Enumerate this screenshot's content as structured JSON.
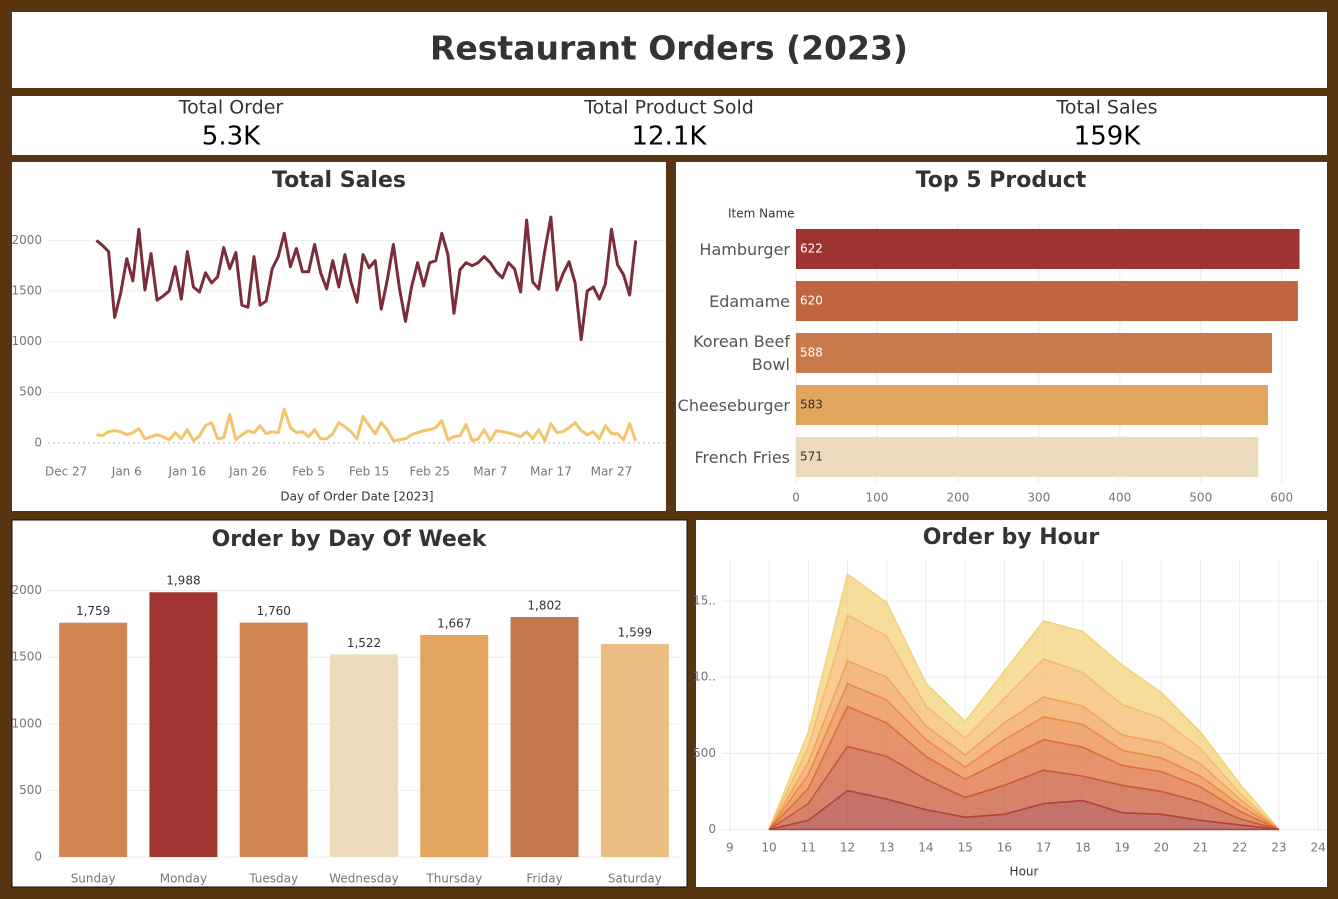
{
  "header": {
    "title": "Restaurant Orders (2023)"
  },
  "kpis": [
    {
      "label": "Total Order",
      "value": "5.3K"
    },
    {
      "label": "Total Product Sold",
      "value": "12.1K"
    },
    {
      "label": "Total Sales",
      "value": "159K"
    }
  ],
  "chart_data": [
    {
      "type": "line",
      "title": "Total Sales",
      "x_label": "Day of Order Date [2023]",
      "x": [
        1,
        2,
        3,
        4,
        5,
        6,
        7,
        8,
        9,
        10,
        11,
        12,
        13,
        14,
        15,
        16,
        17,
        18,
        19,
        20,
        21,
        22,
        23,
        24,
        25,
        26,
        27,
        28,
        29,
        30,
        31,
        32,
        33,
        34,
        35,
        36,
        37,
        38,
        39,
        40,
        41,
        42,
        43,
        44,
        45,
        46,
        47,
        48,
        49,
        50,
        51,
        52,
        53,
        54,
        55,
        56,
        57,
        58,
        59,
        60,
        61,
        62,
        63,
        64,
        65,
        66,
        67,
        68,
        69,
        70,
        71,
        72,
        73,
        74,
        75,
        76,
        77,
        78,
        79,
        80,
        81,
        82,
        83,
        84,
        85,
        86,
        87,
        88,
        89,
        90
      ],
      "series": [
        {
          "color": "#7b2d3b",
          "values": [
            2000,
            1950,
            1890,
            1240,
            1480,
            1820,
            1600,
            2110,
            1510,
            1870,
            1410,
            1450,
            1500,
            1740,
            1420,
            1890,
            1540,
            1490,
            1680,
            1580,
            1640,
            1930,
            1720,
            1880,
            1360,
            1340,
            1840,
            1360,
            1400,
            1720,
            1840,
            2070,
            1740,
            1920,
            1690,
            1690,
            1960,
            1680,
            1520,
            1800,
            1540,
            1860,
            1590,
            1390,
            1860,
            1730,
            1800,
            1320,
            1610,
            1960,
            1530,
            1200,
            1540,
            1780,
            1550,
            1780,
            1800,
            2070,
            1860,
            1280,
            1710,
            1780,
            1750,
            1780,
            1840,
            1780,
            1690,
            1630,
            1780,
            1720,
            1490,
            2200,
            1590,
            1520,
            1900,
            2230,
            1510,
            1670,
            1790,
            1580,
            1020,
            1500,
            1540,
            1420,
            1570,
            2110,
            1760,
            1660,
            1460,
            2000
          ]
        },
        {
          "color": "#f2c46b",
          "values": [
            80,
            70,
            110,
            120,
            110,
            80,
            100,
            140,
            40,
            60,
            80,
            60,
            30,
            100,
            40,
            130,
            20,
            70,
            170,
            200,
            40,
            50,
            280,
            30,
            80,
            120,
            100,
            170,
            90,
            110,
            100,
            330,
            150,
            100,
            110,
            60,
            130,
            40,
            40,
            90,
            200,
            160,
            110,
            40,
            260,
            170,
            90,
            200,
            130,
            20,
            30,
            40,
            80,
            100,
            120,
            130,
            150,
            220,
            30,
            60,
            70,
            180,
            20,
            40,
            130,
            20,
            120,
            110,
            100,
            80,
            60,
            110,
            40,
            130,
            20,
            190,
            100,
            110,
            150,
            200,
            120,
            80,
            110,
            40,
            170,
            90,
            90,
            30,
            190,
            20
          ]
        }
      ],
      "xlim": [
        -7,
        95
      ],
      "xticks": [
        {
          "value": -4,
          "label": "Dec 27"
        },
        {
          "value": 6,
          "label": "Jan 6"
        },
        {
          "value": 16,
          "label": "Jan 16"
        },
        {
          "value": 26,
          "label": "Jan 26"
        },
        {
          "value": 36,
          "label": "Feb 5"
        },
        {
          "value": 46,
          "label": "Feb 15"
        },
        {
          "value": 56,
          "label": "Feb 25"
        },
        {
          "value": 66,
          "label": "Mar 7"
        },
        {
          "value": 76,
          "label": "Mar 17"
        },
        {
          "value": 86,
          "label": "Mar 27"
        }
      ],
      "ylim": [
        -150,
        2350
      ],
      "yticks": [
        0,
        500,
        1000,
        1500,
        2000
      ],
      "grid": true
    },
    {
      "type": "hbar",
      "title": "Top 5 Product",
      "y_label": "Item Name",
      "categories": [
        "Hamburger",
        "Edamame",
        "Korean Beef Bowl",
        "Cheeseburger",
        "French Fries"
      ],
      "values": [
        622,
        620,
        588,
        583,
        571
      ],
      "colors": [
        "#9e3432",
        "#c0653f",
        "#c97a4b",
        "#e2a55f",
        "#ecdabd"
      ],
      "xlim": [
        0,
        630
      ],
      "xticks": [
        0,
        100,
        200,
        300,
        400,
        500,
        600
      ],
      "grid": true
    },
    {
      "type": "bar",
      "title": "Order by Day Of Week",
      "categories": [
        "Sunday",
        "Monday",
        "Tuesday",
        "Wednesday",
        "Thursday",
        "Friday",
        "Saturday"
      ],
      "values": [
        1759,
        1988,
        1760,
        1522,
        1667,
        1802,
        1599
      ],
      "value_labels": [
        "1,759",
        "1,988",
        "1,760",
        "1,522",
        "1,667",
        "1,802",
        "1,599"
      ],
      "colors": [
        "#d08651",
        "#a03533",
        "#d08651",
        "#ecdabd",
        "#e3a45f",
        "#c6764b",
        "#eabe83"
      ],
      "ylim": [
        -60,
        2230
      ],
      "yticks": [
        0,
        500,
        1000,
        1500,
        2000
      ],
      "grid": true
    },
    {
      "type": "area",
      "title": "Order by Hour",
      "x_label": "Hour",
      "x": [
        10,
        11,
        12,
        13,
        14,
        15,
        16,
        17,
        18,
        19,
        20,
        21,
        22,
        23
      ],
      "series": [
        {
          "color": "#b0443a",
          "values": [
            0,
            60,
            255,
            200,
            130,
            80,
            100,
            170,
            190,
            110,
            100,
            60,
            30,
            0
          ]
        },
        {
          "color": "#c9583a",
          "values": [
            0,
            110,
            290,
            280,
            200,
            130,
            190,
            220,
            160,
            180,
            150,
            120,
            40,
            0
          ]
        },
        {
          "color": "#dd6f3c",
          "values": [
            0,
            100,
            262,
            220,
            150,
            120,
            170,
            200,
            190,
            130,
            130,
            100,
            50,
            0
          ]
        },
        {
          "color": "#e98a45",
          "values": [
            0,
            90,
            150,
            150,
            110,
            80,
            130,
            150,
            150,
            100,
            90,
            70,
            40,
            0
          ]
        },
        {
          "color": "#f1a358",
          "values": [
            0,
            80,
            150,
            150,
            90,
            80,
            110,
            130,
            120,
            100,
            100,
            80,
            40,
            0
          ]
        },
        {
          "color": "#f5bb6c",
          "values": [
            0,
            100,
            300,
            270,
            130,
            110,
            160,
            250,
            220,
            200,
            160,
            100,
            40,
            0
          ]
        },
        {
          "color": "#f4d27a",
          "values": [
            0,
            100,
            270,
            220,
            150,
            110,
            180,
            250,
            270,
            260,
            170,
            110,
            60,
            0
          ]
        }
      ],
      "xlim": [
        8.8,
        24.2
      ],
      "xticks": [
        9,
        10,
        11,
        12,
        13,
        14,
        15,
        16,
        17,
        18,
        19,
        20,
        21,
        22,
        23,
        24
      ],
      "ylim": [
        -10,
        1770
      ],
      "yticks": [
        0,
        500,
        {
          "value": 1000,
          "label": "10.."
        },
        {
          "value": 1500,
          "label": "15.."
        }
      ],
      "grid": true
    }
  ]
}
